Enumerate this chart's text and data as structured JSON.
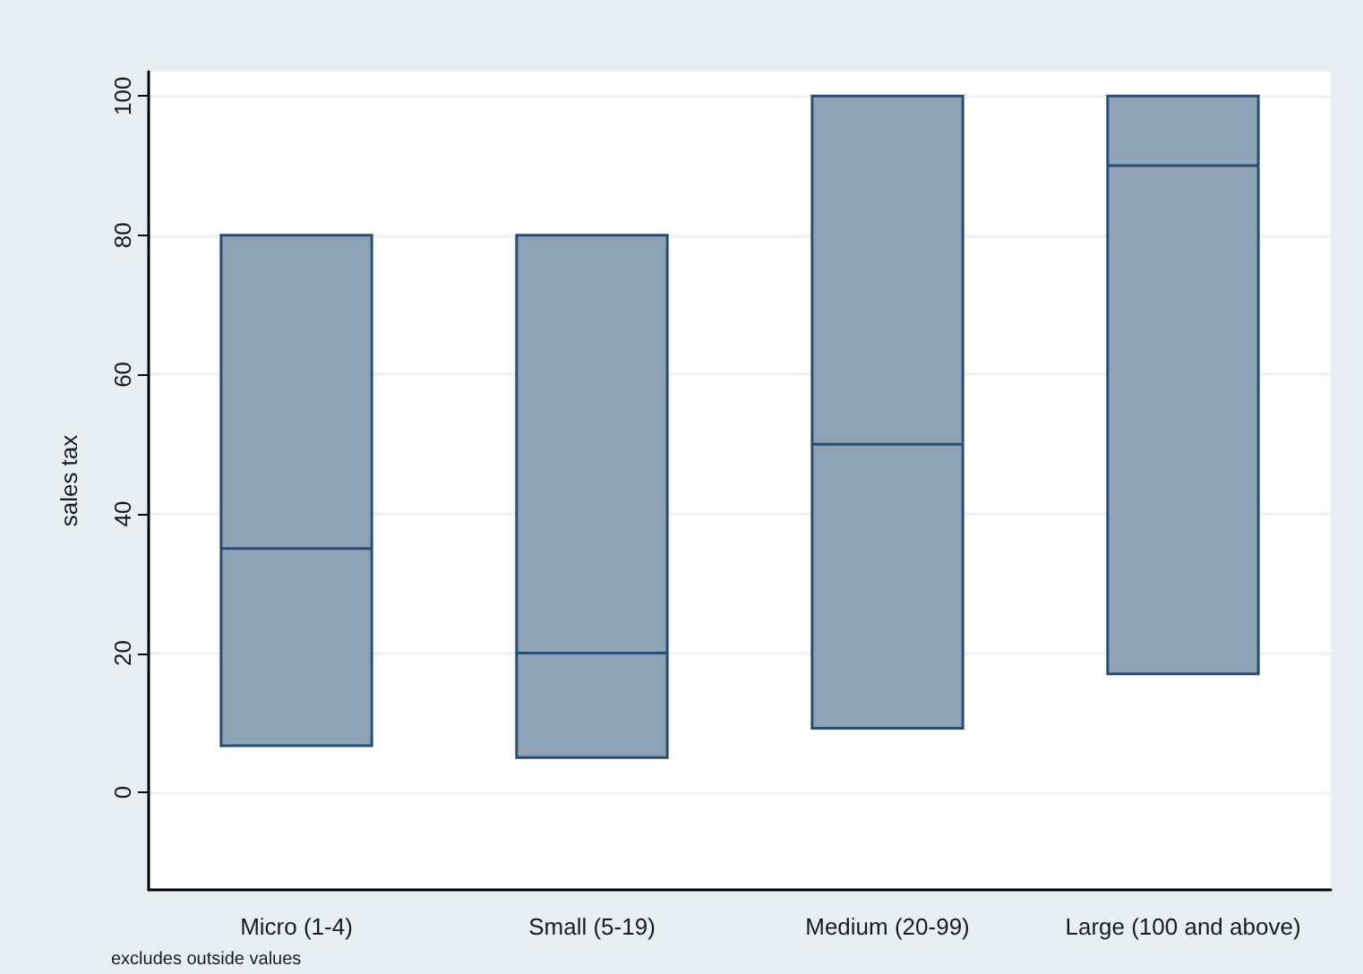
{
  "chart_data": {
    "type": "box",
    "ylabel": "sales tax",
    "categories": [
      "Micro (1-4)",
      "Small (5-19)",
      "Medium (20-99)",
      "Large (100 and above)"
    ],
    "boxes": [
      {
        "low": 6.7,
        "q1": 6.7,
        "median": 35,
        "q3": 80,
        "high": 80
      },
      {
        "low": 5,
        "q1": 5,
        "median": 20,
        "q3": 80,
        "high": 80
      },
      {
        "low": 9.2,
        "q1": 9.2,
        "median": 50,
        "q3": 100,
        "high": 100
      },
      {
        "low": 17,
        "q1": 17,
        "median": 90,
        "q3": 100,
        "high": 100
      }
    ],
    "color": "#8fa3b7",
    "ylim": [
      -14,
      103.5
    ],
    "yticks": [
      0,
      20,
      40,
      60,
      80,
      100
    ],
    "grid": "y",
    "annotations": [
      "excludes outside values"
    ]
  }
}
